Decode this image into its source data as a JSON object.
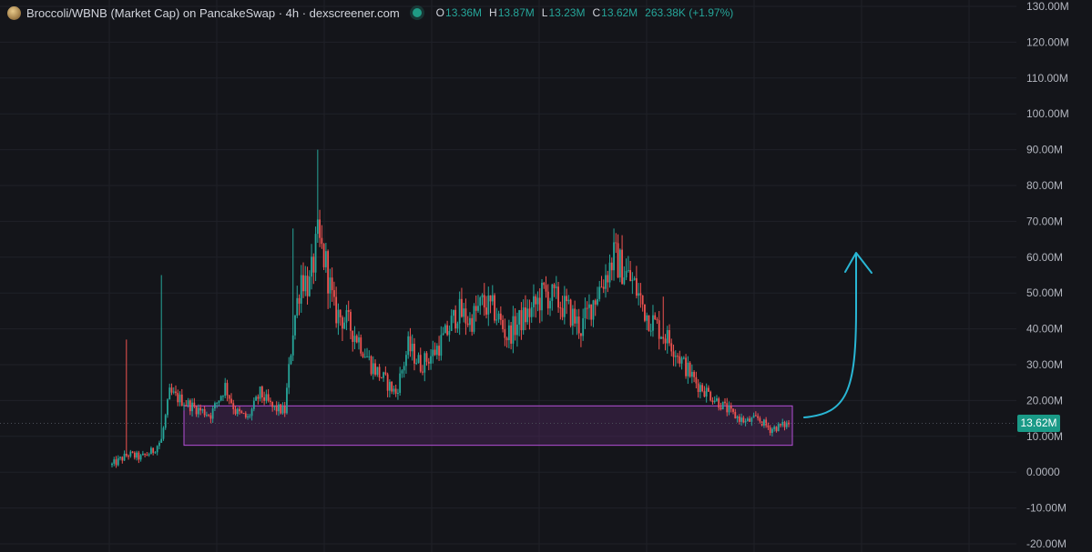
{
  "header": {
    "title": "Broccoli/WBNB (Market Cap) on PancakeSwap · 4h · dexscreener.com",
    "ohlc": [
      {
        "key": "O",
        "value": "13.36M"
      },
      {
        "key": "H",
        "value": "13.87M"
      },
      {
        "key": "L",
        "value": "13.23M"
      },
      {
        "key": "C",
        "value": "13.62M"
      }
    ],
    "change": "263.38K (+1.97%)"
  },
  "price_badge": "13.62M",
  "colors": {
    "background": "#14151a",
    "grid": "#1f2128",
    "up": "#26a69a",
    "down": "#ef5350",
    "zone_fill": "#5a2a6a",
    "zone_stroke": "#b44fd6",
    "arrow": "#29b6d4",
    "price_line": "#4a4e58"
  },
  "chart_data": {
    "type": "candlestick",
    "y_axis": {
      "side": "right",
      "ticks": [
        {
          "value": 130,
          "label": "130.00M"
        },
        {
          "value": 120,
          "label": "120.00M"
        },
        {
          "value": 110,
          "label": "110.00M"
        },
        {
          "value": 100,
          "label": "100.00M"
        },
        {
          "value": 90,
          "label": "90.00M"
        },
        {
          "value": 80,
          "label": "80.00M"
        },
        {
          "value": 70,
          "label": "70.00M"
        },
        {
          "value": 60,
          "label": "60.00M"
        },
        {
          "value": 50,
          "label": "50.00M"
        },
        {
          "value": 40,
          "label": "40.00M"
        },
        {
          "value": 30,
          "label": "30.00M"
        },
        {
          "value": 20,
          "label": "20.00M"
        },
        {
          "value": 10,
          "label": "10.00M"
        },
        {
          "value": 0,
          "label": "0.0000"
        },
        {
          "value": -10,
          "label": "-10.00M"
        },
        {
          "value": -20,
          "label": "-20.00M"
        }
      ],
      "range": [
        -20,
        130
      ],
      "unit": "M"
    },
    "last_price": 13.62,
    "grid": true,
    "zone": {
      "low": 7.5,
      "high": 18.5
    },
    "series": [
      {
        "points": [
          [
            0,
            1,
            3
          ],
          [
            0.9,
            1,
            8
          ],
          [
            6,
            12,
            15
          ],
          [
            4.5,
            8,
            13
          ],
          [
            8,
            10,
            14
          ],
          [
            8,
            10,
            17
          ],
          [
            1,
            3,
            4
          ],
          [
            3,
            5,
            8
          ],
          [
            4,
            6,
            7
          ],
          [
            2,
            3,
            6
          ],
          [
            3,
            4,
            7
          ],
          [
            4,
            5,
            8
          ],
          [
            3,
            5,
            7
          ],
          [
            4,
            6,
            8
          ],
          [
            6,
            8,
            10
          ],
          [
            7,
            9,
            11
          ],
          [
            5,
            7,
            9
          ],
          [
            6,
            8,
            10
          ],
          [
            4,
            6,
            7
          ]
        ]
      },
      {
        "points": [
          [
            14,
            17,
            24
          ],
          [
            17,
            20,
            28
          ],
          [
            20,
            23,
            27
          ],
          [
            18,
            21,
            24
          ],
          [
            15,
            18,
            22
          ],
          [
            13,
            16,
            20
          ],
          [
            14,
            18,
            22
          ],
          [
            16,
            19,
            23
          ],
          [
            17,
            21,
            25
          ],
          [
            19,
            22,
            28
          ],
          [
            17,
            20,
            24
          ],
          [
            15,
            18,
            21
          ],
          [
            14,
            17,
            20
          ],
          [
            16,
            19,
            23
          ],
          [
            15,
            18,
            22
          ],
          [
            14,
            16,
            19
          ],
          [
            16,
            19,
            22
          ],
          [
            15,
            18,
            21
          ],
          [
            14,
            17,
            20
          ],
          [
            15,
            18,
            24
          ],
          [
            17,
            20,
            25
          ],
          [
            16,
            19,
            23
          ],
          [
            15,
            18,
            21
          ],
          [
            16,
            19,
            22
          ],
          [
            17,
            21,
            26
          ],
          [
            18,
            22,
            29
          ],
          [
            16,
            20,
            25
          ],
          [
            17,
            22,
            27
          ],
          [
            15,
            19,
            24
          ],
          [
            14,
            18,
            22
          ],
          [
            16,
            20,
            24
          ],
          [
            17,
            21,
            25
          ],
          [
            18,
            22,
            27
          ],
          [
            16,
            20,
            24
          ],
          [
            15,
            19,
            23
          ],
          [
            16,
            21,
            26
          ],
          [
            18,
            23,
            29
          ],
          [
            20,
            25,
            31
          ],
          [
            18,
            22,
            27
          ],
          [
            17,
            21,
            25
          ],
          [
            16,
            20,
            24
          ],
          [
            17,
            21,
            26
          ],
          [
            18,
            22,
            27
          ],
          [
            17,
            21,
            25
          ],
          [
            16,
            20,
            24
          ],
          [
            17,
            21,
            25
          ],
          [
            15,
            19,
            23
          ],
          [
            16,
            20,
            25
          ],
          [
            17,
            22,
            27
          ],
          [
            18,
            23,
            28
          ]
        ]
      }
    ]
  }
}
